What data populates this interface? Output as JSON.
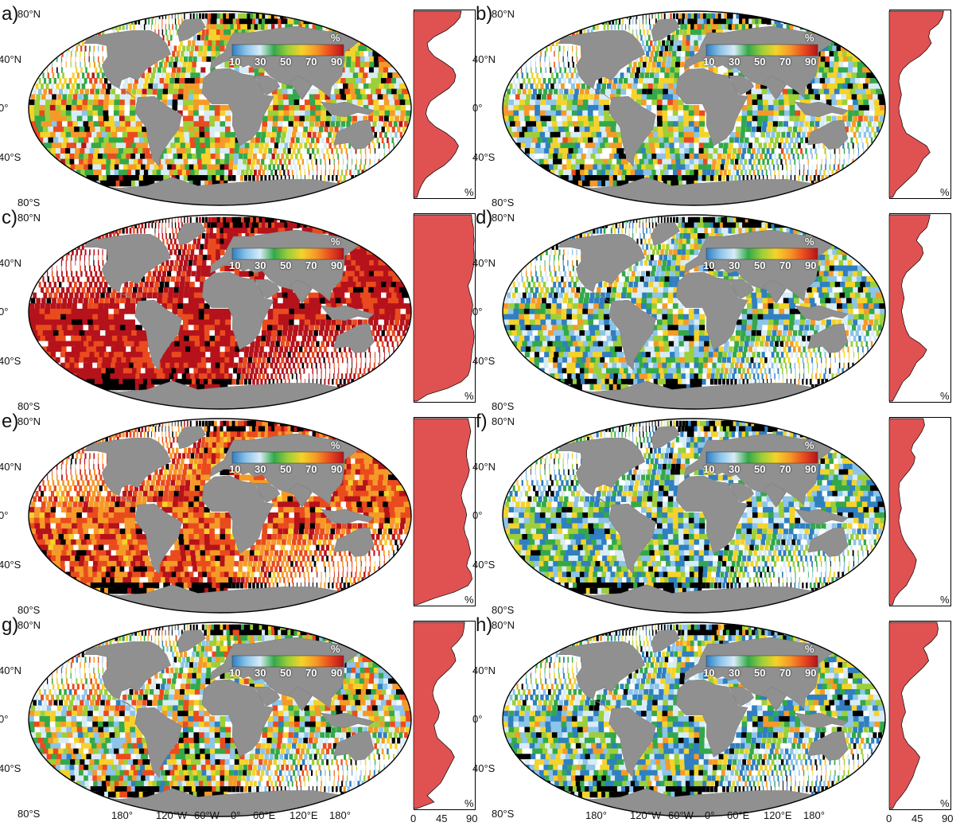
{
  "colors": {
    "land": "#909090",
    "missing": "#ffffff",
    "nodata": "#000000",
    "profile_fill": "#e05252",
    "colormap": [
      "#2f7fc1",
      "#8cc4ea",
      "#d8ecf7",
      "#33a84a",
      "#9ccf3a",
      "#f4d32a",
      "#f59a28",
      "#ea4b1e",
      "#b5121b"
    ]
  },
  "colorbar": {
    "unit": "%",
    "ticks": [
      "10",
      "30",
      "50",
      "70",
      "90"
    ]
  },
  "lat_labels": [
    "80°N",
    "40°N",
    "0°",
    "40°S",
    "80°S"
  ],
  "lon_labels": [
    "180°",
    "120°W",
    "60°W",
    "0°",
    "60°E",
    "120°E",
    "180°"
  ],
  "profile_axis": {
    "unit": "%",
    "ticks": [
      "0",
      "45",
      "90"
    ],
    "range": [
      0,
      90
    ]
  },
  "panels": [
    {
      "label": "a)",
      "seed": 11,
      "bias": 0.55,
      "spread": 0.35,
      "profile": [
        70,
        68,
        60,
        48,
        30,
        20,
        22,
        30,
        45,
        58,
        62,
        60,
        52,
        38,
        25,
        20,
        18,
        22,
        32,
        48,
        60,
        66,
        62,
        55,
        45,
        30,
        18,
        12,
        8,
        5
      ]
    },
    {
      "label": "b)",
      "seed": 23,
      "bias": 0.42,
      "spread": 0.38,
      "profile": [
        80,
        78,
        72,
        60,
        58,
        62,
        55,
        45,
        30,
        20,
        15,
        14,
        16,
        18,
        16,
        14,
        15,
        18,
        20,
        25,
        40,
        55,
        60,
        50,
        45,
        40,
        30,
        20,
        10,
        5
      ]
    },
    {
      "label": "c)",
      "seed": 37,
      "bias": 0.92,
      "spread": 0.08,
      "profile": [
        85,
        86,
        88,
        88,
        89,
        88,
        89,
        89,
        88,
        86,
        84,
        80,
        82,
        85,
        87,
        86,
        84,
        85,
        88,
        89,
        88,
        86,
        85,
        84,
        83,
        80,
        70,
        50,
        20,
        5
      ]
    },
    {
      "label": "d)",
      "seed": 41,
      "bias": 0.35,
      "spread": 0.38,
      "profile": [
        60,
        58,
        55,
        45,
        40,
        48,
        50,
        45,
        35,
        25,
        20,
        18,
        20,
        22,
        20,
        18,
        20,
        22,
        25,
        30,
        45,
        55,
        50,
        40,
        35,
        30,
        20,
        15,
        10,
        5
      ]
    },
    {
      "label": "e)",
      "seed": 53,
      "bias": 0.8,
      "spread": 0.15,
      "profile": [
        80,
        82,
        84,
        82,
        80,
        78,
        78,
        80,
        82,
        80,
        76,
        72,
        70,
        72,
        76,
        78,
        76,
        74,
        76,
        80,
        82,
        84,
        80,
        78,
        84,
        86,
        80,
        60,
        30,
        5
      ]
    },
    {
      "label": "f)",
      "seed": 67,
      "bias": 0.32,
      "spread": 0.35,
      "profile": [
        50,
        52,
        48,
        42,
        35,
        32,
        38,
        36,
        30,
        22,
        15,
        14,
        15,
        16,
        18,
        15,
        14,
        16,
        18,
        22,
        28,
        35,
        40,
        38,
        35,
        30,
        25,
        15,
        8,
        5
      ]
    },
    {
      "label": "g)",
      "seed": 79,
      "bias": 0.48,
      "spread": 0.4,
      "profile": [
        75,
        74,
        72,
        65,
        55,
        60,
        62,
        55,
        45,
        35,
        30,
        28,
        30,
        35,
        38,
        36,
        30,
        32,
        35,
        45,
        55,
        60,
        55,
        50,
        45,
        40,
        30,
        20,
        30,
        5
      ]
    },
    {
      "label": "h)",
      "seed": 83,
      "bias": 0.33,
      "spread": 0.4,
      "profile": [
        70,
        72,
        70,
        62,
        50,
        55,
        58,
        50,
        40,
        30,
        22,
        18,
        20,
        22,
        24,
        20,
        18,
        20,
        22,
        28,
        38,
        45,
        42,
        38,
        35,
        30,
        25,
        18,
        10,
        5
      ]
    }
  ]
}
